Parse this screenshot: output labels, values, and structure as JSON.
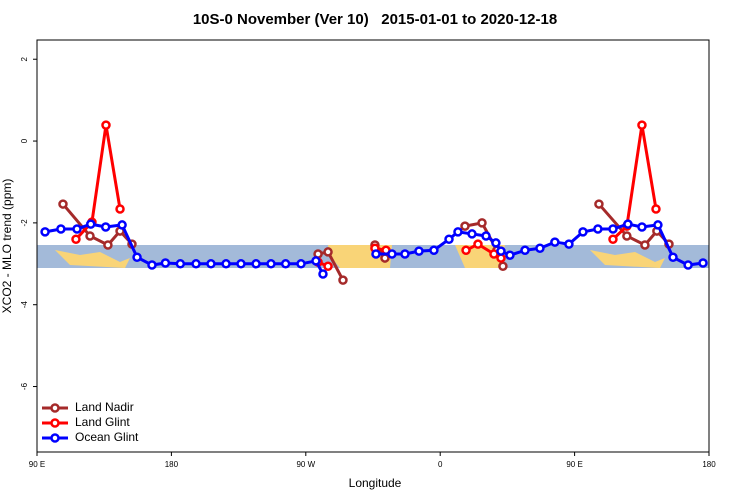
{
  "chart_data": {
    "type": "line",
    "title": "10S-0 November (Ver 10)   2015-01-01 to 2020-12-18",
    "x_label": "Longitude",
    "y_label": "XCO2 - MLO trend (ppm)",
    "xlim": [
      90,
      540
    ],
    "xticks": [
      {
        "value": 90,
        "label": "90 E"
      },
      {
        "value": 180,
        "label": "180"
      },
      {
        "value": 270,
        "label": "90 W"
      },
      {
        "value": 360,
        "label": "0"
      },
      {
        "value": 450,
        "label": "90 E"
      },
      {
        "value": 540,
        "label": "180"
      }
    ],
    "ylim": [
      -7.6,
      2.47
    ],
    "yticks": [
      2,
      0,
      -2,
      -4,
      -6
    ],
    "legend": "bottom-left",
    "series": [
      {
        "name": "Land Nadir",
        "color": "#a52a2a",
        "x": [
          107.4,
          125.5,
          137.5,
          145.6,
          153.6,
          null,
          278.2,
          284.9,
          294.9,
          null,
          316.3,
          323,
          null,
          376.6,
          388,
          398,
          402,
          null,
          466.3,
          485,
          497.1,
          505.1,
          513.2
        ],
        "values": [
          -1.54,
          -2.32,
          -2.54,
          -2.2,
          -2.52,
          null,
          -2.76,
          -2.71,
          -3.4,
          null,
          -2.54,
          -2.86,
          null,
          -2.08,
          -2.0,
          -2.67,
          -3.06,
          null,
          -1.54,
          -2.32,
          -2.54,
          -2.2,
          -2.52
        ]
      },
      {
        "name": "Land Glint",
        "color": "#ff0000",
        "x": [
          116.1,
          126.8,
          136.2,
          145.6,
          null,
          278.2,
          284.9,
          null,
          316.3,
          323.7,
          null,
          377.3,
          385.3,
          396,
          400.7,
          null,
          475.7,
          485,
          495.1,
          504.5
        ],
        "values": [
          -2.4,
          -1.98,
          0.39,
          -1.66,
          null,
          -2.96,
          -3.06,
          null,
          -2.62,
          -2.67,
          null,
          -2.67,
          -2.52,
          -2.76,
          -2.86,
          null,
          -2.4,
          -2.08,
          0.39,
          -1.66
        ]
      },
      {
        "name": "Ocean Glint",
        "color": "#0000ff",
        "x": [
          95.4,
          106,
          116.8,
          126,
          136,
          147,
          157,
          167,
          176,
          186,
          196.5,
          206.5,
          216.6,
          226.6,
          236.7,
          246.7,
          256.5,
          266.8,
          276.8,
          281.5,
          null,
          317,
          327.7,
          336.4,
          345.8,
          355.8,
          365.9,
          371.9,
          381.3,
          390.7,
          397.3,
          400.7,
          406.7,
          416.8,
          426.8,
          436.8,
          446.2,
          455.6,
          465.6,
          475.7,
          485.7,
          495.1,
          505.8,
          515.9,
          526,
          536
        ],
        "values": [
          -2.22,
          -2.15,
          -2.15,
          -2.03,
          -2.1,
          -2.05,
          -2.84,
          -3.03,
          -2.98,
          -3.0,
          -3.0,
          -3.0,
          -3.0,
          -3.0,
          -3.0,
          -3.0,
          -3.0,
          -3.0,
          -2.93,
          -3.25,
          null,
          -2.76,
          -2.76,
          -2.76,
          -2.69,
          -2.67,
          -2.4,
          -2.22,
          -2.27,
          -2.32,
          -2.49,
          -2.69,
          -2.79,
          -2.67,
          -2.62,
          -2.47,
          -2.52,
          -2.22,
          -2.15,
          -2.15,
          -2.03,
          -2.1,
          -2.05,
          -2.84,
          -3.03,
          -2.98
        ]
      }
    ]
  }
}
